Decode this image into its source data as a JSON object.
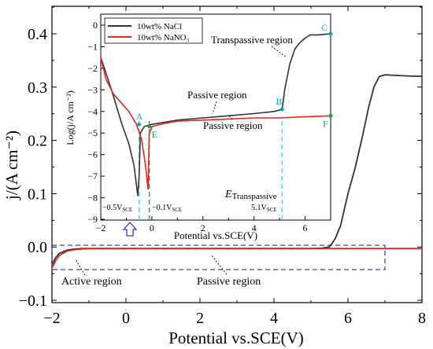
{
  "chart_data": [
    {
      "type": "line",
      "title": "",
      "xlabel": "Potential vs.SCE(V)",
      "ylabel": "j/(A cm⁻²)",
      "xlim": [
        -2,
        8
      ],
      "ylim": [
        -0.1,
        0.45
      ],
      "xticks": [
        -2,
        0,
        2,
        4,
        6,
        8
      ],
      "xtick_labels": [
        "−2",
        "0",
        "2",
        "4",
        "6",
        "8"
      ],
      "yticks": [
        -0.1,
        0.0,
        0.1,
        0.2,
        0.3,
        0.4
      ],
      "ytick_labels": [
        "−0.1",
        "0.0",
        "0.1",
        "0.2",
        "0.3",
        "0.4"
      ],
      "grid": false,
      "series": [
        {
          "name": "10wt% NaCl",
          "color": "#333333",
          "x": [
            -2.0,
            -1.9,
            -1.8,
            -1.6,
            -1.4,
            -1.2,
            -1.0,
            0.0,
            2.0,
            4.0,
            5.0,
            5.3,
            5.5,
            5.65,
            5.8,
            5.9,
            6.0,
            6.2,
            6.4,
            6.55,
            6.7,
            6.85,
            7.0,
            7.3,
            7.6,
            8.0
          ],
          "y": [
            -0.033,
            -0.02,
            -0.012,
            -0.006,
            -0.004,
            -0.003,
            -0.003,
            -0.003,
            -0.003,
            -0.003,
            -0.003,
            -0.002,
            0.0,
            0.015,
            0.04,
            0.07,
            0.1,
            0.15,
            0.21,
            0.26,
            0.3,
            0.32,
            0.323,
            0.322,
            0.321,
            0.32
          ]
        },
        {
          "name": "10wt% NaNO₃",
          "color": "#e8251f",
          "x": [
            -2.0,
            -1.9,
            -1.8,
            -1.6,
            -1.4,
            -1.2,
            -1.0,
            0.0,
            2.0,
            4.0,
            6.0,
            8.0
          ],
          "y": [
            -0.04,
            -0.026,
            -0.016,
            -0.008,
            -0.005,
            -0.004,
            -0.003,
            -0.003,
            -0.003,
            -0.003,
            -0.003,
            -0.003
          ]
        }
      ],
      "annotations": [
        "Active region",
        "Passive region"
      ]
    },
    {
      "type": "line",
      "title": "",
      "xlabel": "Potential vs.SCE(V)",
      "ylabel": "Log(j/A cm⁻²)",
      "xlim": [
        -2,
        7
      ],
      "ylim": [
        -9,
        0.5
      ],
      "xticks": [
        -2,
        0,
        2,
        4,
        6
      ],
      "xtick_labels": [
        "−2",
        "0",
        "2",
        "4",
        "6"
      ],
      "yticks": [
        0,
        -1,
        -2,
        -3,
        -4,
        -5,
        -6,
        -7,
        -8,
        -9
      ],
      "ytick_labels": [
        "0",
        "−1",
        "−2",
        "−3",
        "−4",
        "−5",
        "−6",
        "−7",
        "−8",
        "−9"
      ],
      "legend": "top-left",
      "series": [
        {
          "name": "10wt% NaCl",
          "color": "#333333",
          "x": [
            -2.0,
            -1.8,
            -1.5,
            -1.2,
            -0.9,
            -0.7,
            -0.55,
            -0.5,
            -0.45,
            -0.3,
            0.0,
            0.5,
            1.0,
            2.0,
            3.0,
            4.0,
            4.8,
            5.1,
            5.2,
            5.4,
            5.6,
            5.8,
            6.0,
            6.2,
            6.5,
            7.0
          ],
          "y": [
            -1.5,
            -2.2,
            -3.3,
            -4.5,
            -5.5,
            -6.5,
            -7.9,
            -7.0,
            -5.0,
            -4.7,
            -4.6,
            -4.5,
            -4.4,
            -4.3,
            -4.2,
            -4.1,
            -4.0,
            -3.9,
            -3.0,
            -1.8,
            -1.1,
            -0.8,
            -0.6,
            -0.45,
            -0.45,
            -0.4
          ]
        },
        {
          "name": "10wt% NaNO₃",
          "color": "#e8251f",
          "x": [
            -2.0,
            -1.8,
            -1.5,
            -1.2,
            -0.9,
            -0.6,
            -0.4,
            -0.25,
            -0.15,
            -0.1,
            -0.05,
            0.0,
            0.5,
            1.0,
            2.0,
            3.0,
            4.0,
            5.0,
            6.0,
            7.0
          ],
          "y": [
            -1.5,
            -2.5,
            -3.2,
            -3.6,
            -4.0,
            -4.6,
            -5.3,
            -6.5,
            -7.6,
            -5.0,
            -4.9,
            -4.7,
            -4.55,
            -4.45,
            -4.4,
            -4.35,
            -4.3,
            -4.3,
            -4.25,
            -4.2
          ]
        }
      ],
      "points": [
        {
          "label": "A",
          "x": -0.5,
          "y": -4.6,
          "color": "#00a5d6"
        },
        {
          "label": "B",
          "x": 5.1,
          "y": -3.9,
          "color": "#00a5d6"
        },
        {
          "label": "C",
          "x": 7.0,
          "y": -0.4,
          "color": "#00a5d6"
        },
        {
          "label": "E",
          "x": -0.1,
          "y": -4.7,
          "color": "#1aa04b"
        },
        {
          "label": "F",
          "x": 7.0,
          "y": -4.2,
          "color": "#1aa04b"
        }
      ],
      "vlines": [
        {
          "x": -0.5,
          "color": "#5bc8e6",
          "label": "−0.5V",
          "label_sub": "SCE"
        },
        {
          "x": -0.1,
          "color": "#1aa04b",
          "label": "−0.1V",
          "label_sub": "SCE"
        },
        {
          "x": 5.1,
          "color": "#5bc8e6",
          "label": "5.1V",
          "label_sub": "SCE"
        }
      ],
      "annotations": [
        "Transpassive region",
        "Passive region",
        "Passive region"
      ],
      "etrans_label": "E",
      "etrans_sub": "Transpassive"
    }
  ]
}
